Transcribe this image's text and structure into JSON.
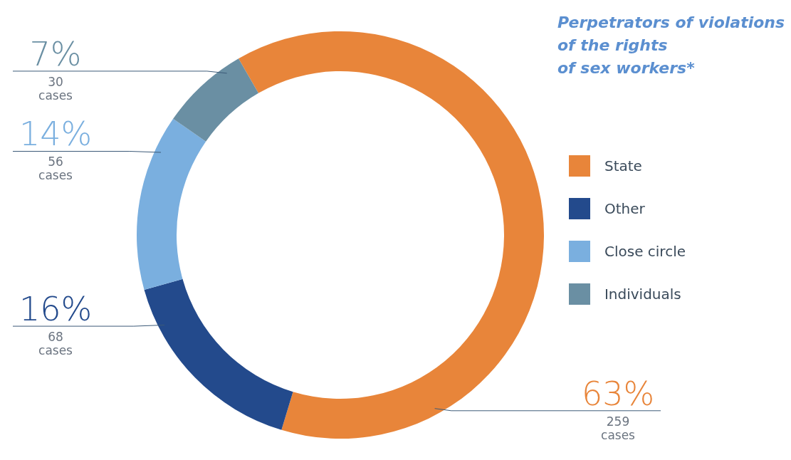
{
  "chart_data": {
    "type": "donut",
    "title": "Perpetrators of violations\nof the rights\nof sex workers*",
    "categories": [
      "State",
      "Other",
      "Close circle",
      "Individuals"
    ],
    "values": [
      63,
      16,
      14,
      7
    ],
    "colors": [
      "#e8853a",
      "#234a8c",
      "#7aafdf",
      "#6a8fa3"
    ],
    "value_labels": [
      "63%",
      "16%",
      "14%",
      "7%"
    ],
    "annotations": [
      {
        "text": "259\ncases",
        "x": "State"
      },
      {
        "text": "68\ncases",
        "x": "Other"
      },
      {
        "text": "56\ncases",
        "x": "Close circle"
      },
      {
        "text": "30\ncases",
        "x": "Individuals"
      }
    ],
    "legend": "right"
  }
}
